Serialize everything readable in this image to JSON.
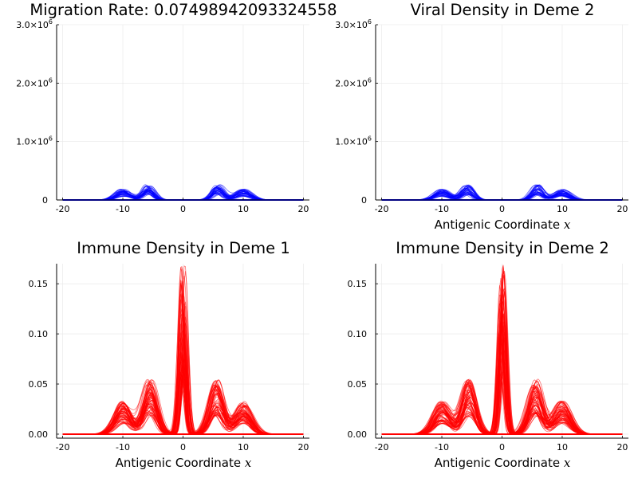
{
  "figure": {
    "title": "",
    "curve_note": "each panel shows a bundle of overlapping density curves over time"
  },
  "chart_data": [
    {
      "id": "p1",
      "type": "line",
      "title": "Migration Rate: 0.07498942093324558",
      "xlabel": "",
      "ylabel": "",
      "xlim": [
        -21,
        21
      ],
      "ylim": [
        0,
        3000000
      ],
      "xticks": [
        -20,
        -10,
        0,
        10,
        20
      ],
      "xtick_labels": [
        "-20",
        "-10",
        "0",
        "10",
        "20"
      ],
      "yticks": [
        0,
        1000000,
        2000000,
        3000000
      ],
      "ytick_labels": [
        {
          "base": "0",
          "exp": ""
        },
        {
          "base": "1.0×10",
          "exp": "6"
        },
        {
          "base": "2.0×10",
          "exp": "6"
        },
        {
          "base": "3.0×10",
          "exp": "6"
        }
      ],
      "grid": true,
      "legend": "none",
      "color": "#0000ff",
      "peaks": [
        {
          "mu": -10,
          "sigma": 1.2,
          "amp": 170000
        },
        {
          "mu": -5.8,
          "sigma": 0.9,
          "amp": 240000
        },
        {
          "mu": 5.8,
          "sigma": 0.9,
          "amp": 240000
        },
        {
          "mu": 10,
          "sigma": 1.2,
          "amp": 170000
        }
      ],
      "n_curves": 40
    },
    {
      "id": "p2",
      "type": "line",
      "title": "Viral Density in Deme 2",
      "xlabel": "Antigenic Coordinate",
      "xlabel_var": "x",
      "ylabel": "",
      "xlim": [
        -21,
        21
      ],
      "ylim": [
        0,
        3000000
      ],
      "xticks": [
        -20,
        -10,
        0,
        10,
        20
      ],
      "xtick_labels": [
        "-20",
        "-10",
        "0",
        "10",
        "20"
      ],
      "yticks": [
        0,
        1000000,
        2000000,
        3000000
      ],
      "ytick_labels": [
        {
          "base": "0",
          "exp": ""
        },
        {
          "base": "1.0×10",
          "exp": "6"
        },
        {
          "base": "2.0×10",
          "exp": "6"
        },
        {
          "base": "3.0×10",
          "exp": "6"
        }
      ],
      "grid": true,
      "legend": "none",
      "color": "#0000ff",
      "peaks": [
        {
          "mu": -10,
          "sigma": 1.2,
          "amp": 170000
        },
        {
          "mu": -5.8,
          "sigma": 0.9,
          "amp": 240000
        },
        {
          "mu": 5.8,
          "sigma": 0.9,
          "amp": 240000
        },
        {
          "mu": 10,
          "sigma": 1.2,
          "amp": 170000
        }
      ],
      "n_curves": 40
    },
    {
      "id": "p3",
      "type": "line",
      "title": "Immune Density in Deme 1",
      "xlabel": "Antigenic Coordinate",
      "xlabel_var": "x",
      "ylabel": "",
      "xlim": [
        -21,
        21
      ],
      "ylim": [
        -0.004,
        0.17
      ],
      "xticks": [
        -20,
        -10,
        0,
        10,
        20
      ],
      "xtick_labels": [
        "-20",
        "-10",
        "0",
        "10",
        "20"
      ],
      "yticks": [
        0,
        0.05,
        0.1,
        0.15
      ],
      "ytick_labels": [
        {
          "base": "0.00",
          "exp": ""
        },
        {
          "base": "0.05",
          "exp": ""
        },
        {
          "base": "0.10",
          "exp": ""
        },
        {
          "base": "0.15",
          "exp": ""
        }
      ],
      "grid": true,
      "legend": "none",
      "color": "#ff0000",
      "peaks": [
        {
          "mu": -10,
          "sigma": 1.3,
          "amp": 0.03
        },
        {
          "mu": -5.5,
          "sigma": 1.1,
          "amp": 0.05
        },
        {
          "mu": 0,
          "sigma": 0.5,
          "amp": 0.155
        },
        {
          "mu": 5.5,
          "sigma": 1.1,
          "amp": 0.05
        },
        {
          "mu": 10,
          "sigma": 1.3,
          "amp": 0.03
        }
      ],
      "n_curves": 70
    },
    {
      "id": "p4",
      "type": "line",
      "title": "Immune Density in Deme 2",
      "xlabel": "Antigenic Coordinate",
      "xlabel_var": "x",
      "ylabel": "",
      "xlim": [
        -21,
        21
      ],
      "ylim": [
        -0.004,
        0.17
      ],
      "xticks": [
        -20,
        -10,
        0,
        10,
        20
      ],
      "xtick_labels": [
        "-20",
        "-10",
        "0",
        "10",
        "20"
      ],
      "yticks": [
        0,
        0.05,
        0.1,
        0.15
      ],
      "ytick_labels": [
        {
          "base": "0.00",
          "exp": ""
        },
        {
          "base": "0.05",
          "exp": ""
        },
        {
          "base": "0.10",
          "exp": ""
        },
        {
          "base": "0.15",
          "exp": ""
        }
      ],
      "grid": true,
      "legend": "none",
      "color": "#ff0000",
      "peaks": [
        {
          "mu": -10,
          "sigma": 1.3,
          "amp": 0.03
        },
        {
          "mu": -5.5,
          "sigma": 1.1,
          "amp": 0.05
        },
        {
          "mu": 0,
          "sigma": 0.5,
          "amp": 0.155
        },
        {
          "mu": 5.5,
          "sigma": 1.1,
          "amp": 0.05
        },
        {
          "mu": 10,
          "sigma": 1.3,
          "amp": 0.03
        }
      ],
      "n_curves": 70
    }
  ]
}
